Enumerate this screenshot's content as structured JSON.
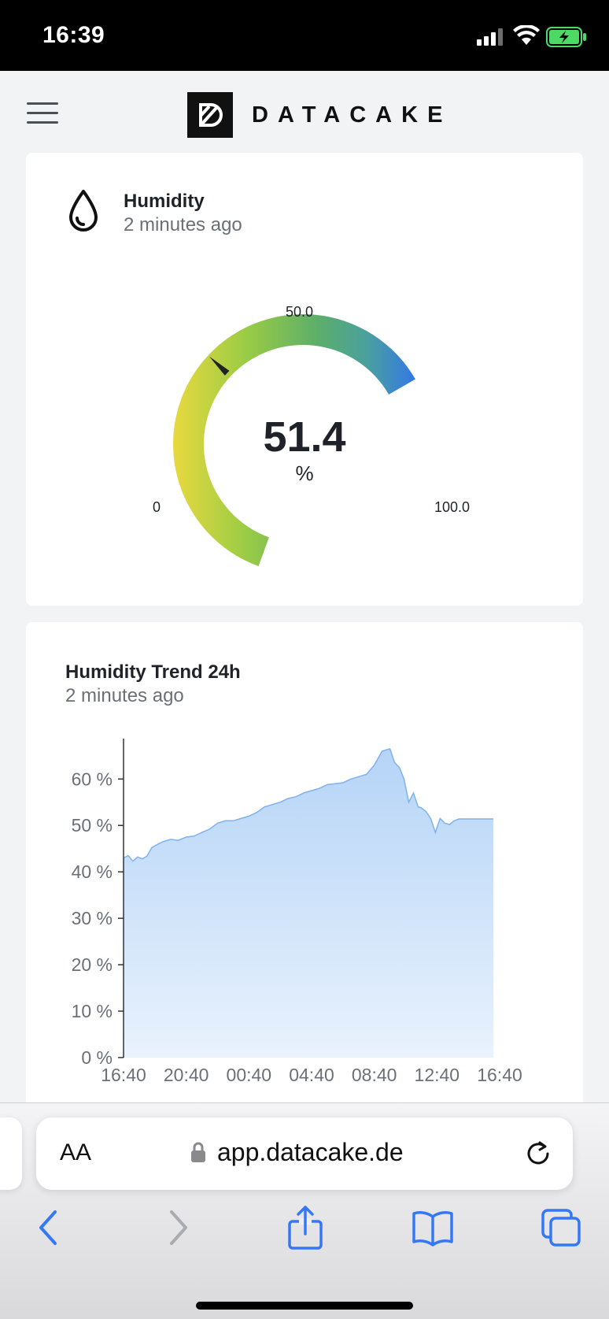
{
  "status_bar": {
    "time": "16:39"
  },
  "app": {
    "brand": "DATACAKE"
  },
  "gauge_card": {
    "title": "Humidity",
    "updated": "2 minutes ago",
    "value": "51.4",
    "unit": "%",
    "min_label": "0",
    "max_label": "100.0",
    "mid_label": "50.0",
    "min": 0,
    "max": 100,
    "current": 51.4,
    "colors": [
      "#e8d93e",
      "#9bcc45",
      "#5cae6a",
      "#4aa09e",
      "#3478e6"
    ]
  },
  "trend_card": {
    "title": "Humidity Trend 24h",
    "updated": "2 minutes ago"
  },
  "chart_data": {
    "type": "area",
    "title": "Humidity Trend 24h",
    "xlabel": "",
    "ylabel": "",
    "x_ticks": [
      "16:40",
      "20:40",
      "00:40",
      "04:40",
      "08:40",
      "12:40",
      "16:40"
    ],
    "y_ticks": [
      "0 %",
      "10 %",
      "20 %",
      "30 %",
      "40 %",
      "50 %",
      "60 %"
    ],
    "ylim": [
      0,
      67
    ],
    "grid": false,
    "fill_color": "#bcd9f8",
    "line_color": "#7fb2ec",
    "series": [
      {
        "hours": [
          0,
          0.3,
          0.6,
          0.9,
          1.2,
          1.5,
          1.8,
          2.1,
          2.5,
          3.0,
          3.5,
          4.0,
          4.5,
          5.0,
          5.5,
          6.0,
          6.5,
          7.0,
          7.5,
          8.0,
          8.5,
          9.0,
          9.5,
          10.0,
          10.5,
          11.0,
          11.5,
          12.0,
          12.5,
          13.0,
          13.5,
          14.0,
          14.5,
          15.0,
          15.5,
          16.0,
          16.5,
          17.0,
          17.3,
          17.6,
          17.9,
          18.2,
          18.5,
          18.8,
          19.0,
          19.3,
          19.6,
          19.9,
          20.2,
          20.5,
          20.8,
          21.1,
          21.4,
          21.7,
          22.0,
          22.3,
          22.6,
          22.9,
          23.2,
          23.5,
          23.6
        ],
        "values": [
          43,
          43.5,
          42.3,
          43.2,
          42.8,
          43.4,
          45.2,
          45.8,
          46.5,
          47.0,
          46.8,
          47.5,
          47.7,
          48.5,
          49.2,
          50.5,
          51.0,
          51.0,
          51.5,
          52.0,
          52.8,
          54.0,
          54.5,
          55.0,
          55.8,
          56.2,
          57.0,
          57.5,
          58.0,
          58.8,
          59.0,
          59.2,
          60.0,
          60.5,
          61.0,
          63.0,
          66.0,
          66.5,
          63.5,
          62.5,
          60.0,
          55.0,
          57.0,
          54.0,
          53.8,
          53.0,
          51.5,
          48.5,
          51.5,
          50.5,
          50.2,
          51.0,
          51.4,
          51.4,
          51.4,
          51.4,
          51.4,
          51.4,
          51.4,
          51.4,
          51.4
        ]
      }
    ]
  },
  "browser": {
    "aa_label": "AA",
    "url": "app.datacake.de"
  }
}
